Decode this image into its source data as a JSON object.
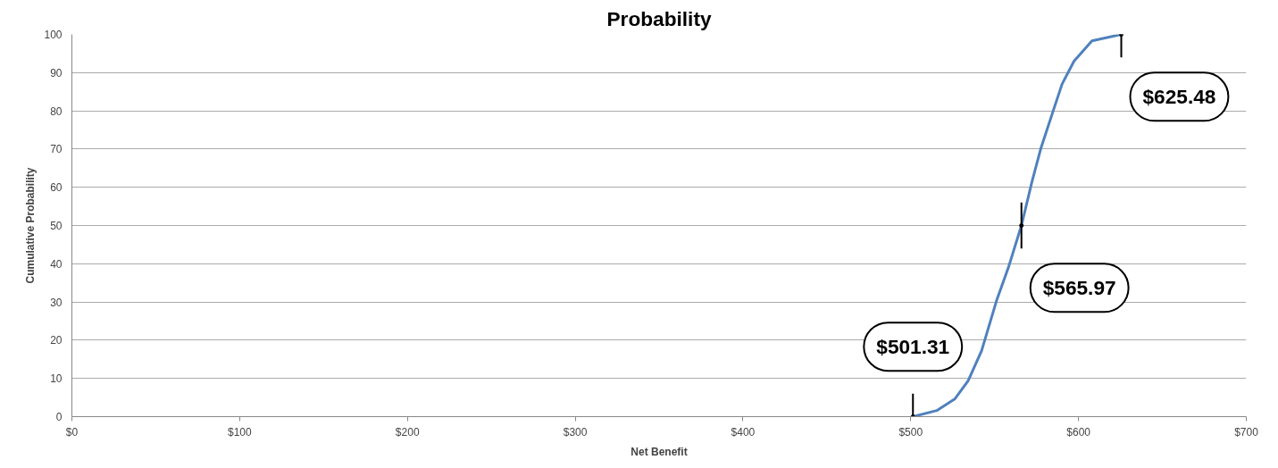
{
  "chart_data": {
    "type": "line",
    "title": "Probability",
    "xlabel": "Net Benefit",
    "ylabel": "Cumulative Probability",
    "series": [
      {
        "color": "#4f81bd",
        "x": [
          501.31,
          515.5,
          526.2,
          534.2,
          542.2,
          551.1,
          558.2,
          565.97,
          572.4,
          577.7,
          584.9,
          590.2,
          597.3,
          608,
          625.48
        ],
        "values": [
          0,
          1.6,
          4.6,
          9.4,
          17.2,
          30.3,
          39,
          50,
          61.7,
          70.4,
          80,
          87,
          93,
          98.3,
          100
        ]
      },
      {
        "type": "scatter",
        "marker": "circle",
        "color": "#000000",
        "x": [
          501.31,
          565.97,
          625.48
        ],
        "values": [
          0,
          50,
          100
        ],
        "errors": [
          6,
          6,
          6
        ]
      }
    ],
    "xlim": [
      0,
      700
    ],
    "ylim": [
      0,
      100
    ],
    "xticks": [
      {
        "value": 0,
        "label": "$0"
      },
      {
        "value": 100,
        "label": "$100"
      },
      {
        "value": 200,
        "label": "$200"
      },
      {
        "value": 300,
        "label": "$300"
      },
      {
        "value": 400,
        "label": "$400"
      },
      {
        "value": 500,
        "label": "$500"
      },
      {
        "value": 600,
        "label": "$600"
      },
      {
        "value": 700,
        "label": "$700"
      }
    ],
    "yticks": [
      0,
      10,
      20,
      30,
      40,
      50,
      60,
      70,
      80,
      90,
      100
    ],
    "grid": "y",
    "marker": "none",
    "line_style": "solid",
    "annotations": [
      {
        "text": "$501.31",
        "x": 501.31,
        "y": 0
      },
      {
        "text": "$565.97",
        "x": 565.97,
        "y": 50
      },
      {
        "text": "$625.48",
        "x": 625.48,
        "y": 100
      }
    ]
  }
}
